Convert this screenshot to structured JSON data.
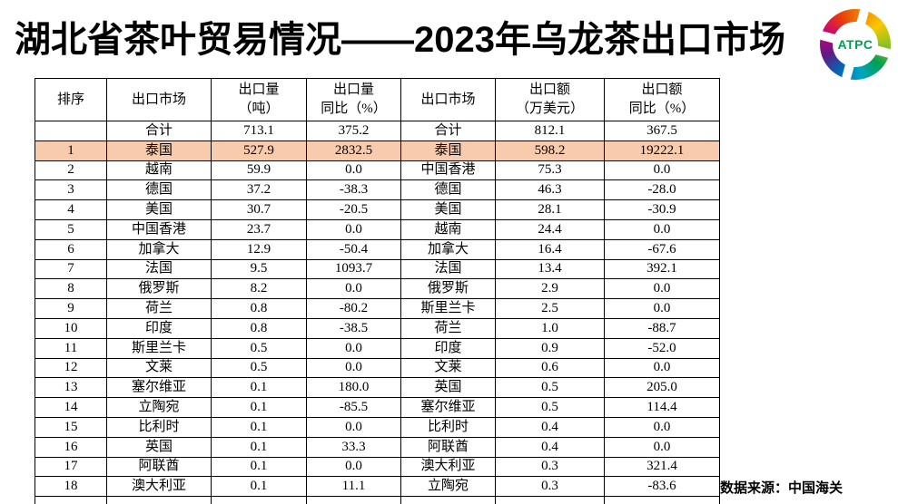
{
  "title": "湖北省茶叶贸易情况——2023年乌龙茶出口市场",
  "logo": {
    "text": "ATPC",
    "text_color": "#009f54",
    "ring_colors": [
      "#e8380d",
      "#f08300",
      "#fcc800",
      "#8fc31f",
      "#009f54",
      "#00a5c3",
      "#0068b7",
      "#601986",
      "#c7017f"
    ]
  },
  "colors": {
    "highlight_row": "#F8CBAD",
    "border": "#000000",
    "title_text": "#000000"
  },
  "table": {
    "headers": [
      "排序",
      "出口市场",
      "出口量\n（吨）",
      "出口量\n同比（%）",
      "出口市场",
      "出口额\n（万美元）",
      "出口额\n同比（%）"
    ],
    "rows": [
      {
        "rank": "",
        "market_vol": "合计",
        "volume": "713.1",
        "volume_yoy": "375.2",
        "market_val": "合计",
        "value": "812.1",
        "value_yoy": "367.5",
        "highlight": false
      },
      {
        "rank": "1",
        "market_vol": "泰国",
        "volume": "527.9",
        "volume_yoy": "2832.5",
        "market_val": "泰国",
        "value": "598.2",
        "value_yoy": "19222.1",
        "highlight": true
      },
      {
        "rank": "2",
        "market_vol": "越南",
        "volume": "59.9",
        "volume_yoy": "0.0",
        "market_val": "中国香港",
        "value": "75.3",
        "value_yoy": "0.0",
        "highlight": false
      },
      {
        "rank": "3",
        "market_vol": "德国",
        "volume": "37.2",
        "volume_yoy": "-38.3",
        "market_val": "德国",
        "value": "46.3",
        "value_yoy": "-28.0",
        "highlight": false
      },
      {
        "rank": "4",
        "market_vol": "美国",
        "volume": "30.7",
        "volume_yoy": "-20.5",
        "market_val": "美国",
        "value": "28.1",
        "value_yoy": "-30.9",
        "highlight": false
      },
      {
        "rank": "5",
        "market_vol": "中国香港",
        "volume": "23.7",
        "volume_yoy": "0.0",
        "market_val": "越南",
        "value": "24.4",
        "value_yoy": "0.0",
        "highlight": false
      },
      {
        "rank": "6",
        "market_vol": "加拿大",
        "volume": "12.9",
        "volume_yoy": "-50.4",
        "market_val": "加拿大",
        "value": "16.4",
        "value_yoy": "-67.6",
        "highlight": false
      },
      {
        "rank": "7",
        "market_vol": "法国",
        "volume": "9.5",
        "volume_yoy": "1093.7",
        "market_val": "法国",
        "value": "13.4",
        "value_yoy": "392.1",
        "highlight": false
      },
      {
        "rank": "8",
        "market_vol": "俄罗斯",
        "volume": "8.2",
        "volume_yoy": "0.0",
        "market_val": "俄罗斯",
        "value": "2.9",
        "value_yoy": "0.0",
        "highlight": false
      },
      {
        "rank": "9",
        "market_vol": "荷兰",
        "volume": "0.8",
        "volume_yoy": "-80.2",
        "market_val": "斯里兰卡",
        "value": "2.5",
        "value_yoy": "0.0",
        "highlight": false
      },
      {
        "rank": "10",
        "market_vol": "印度",
        "volume": "0.8",
        "volume_yoy": "-38.5",
        "market_val": "荷兰",
        "value": "1.0",
        "value_yoy": "-88.7",
        "highlight": false
      },
      {
        "rank": "11",
        "market_vol": "斯里兰卡",
        "volume": "0.5",
        "volume_yoy": "0.0",
        "market_val": "印度",
        "value": "0.9",
        "value_yoy": "-52.0",
        "highlight": false
      },
      {
        "rank": "12",
        "market_vol": "文莱",
        "volume": "0.5",
        "volume_yoy": "0.0",
        "market_val": "文莱",
        "value": "0.6",
        "value_yoy": "0.0",
        "highlight": false
      },
      {
        "rank": "13",
        "market_vol": "塞尔维亚",
        "volume": "0.1",
        "volume_yoy": "180.0",
        "market_val": "英国",
        "value": "0.5",
        "value_yoy": "205.0",
        "highlight": false
      },
      {
        "rank": "14",
        "market_vol": "立陶宛",
        "volume": "0.1",
        "volume_yoy": "-85.5",
        "market_val": "塞尔维亚",
        "value": "0.5",
        "value_yoy": "114.4",
        "highlight": false
      },
      {
        "rank": "15",
        "market_vol": "比利时",
        "volume": "0.1",
        "volume_yoy": "0.0",
        "market_val": "比利时",
        "value": "0.4",
        "value_yoy": "0.0",
        "highlight": false
      },
      {
        "rank": "16",
        "market_vol": "英国",
        "volume": "0.1",
        "volume_yoy": "33.3",
        "market_val": "阿联酋",
        "value": "0.4",
        "value_yoy": "0.0",
        "highlight": false
      },
      {
        "rank": "17",
        "market_vol": "阿联酋",
        "volume": "0.1",
        "volume_yoy": "0.0",
        "market_val": "澳大利亚",
        "value": "0.3",
        "value_yoy": "321.4",
        "highlight": false
      },
      {
        "rank": "18",
        "market_vol": "澳大利亚",
        "volume": "0.1",
        "volume_yoy": "11.1",
        "market_val": "立陶宛",
        "value": "0.3",
        "value_yoy": "-83.6",
        "highlight": false
      }
    ]
  },
  "footer": {
    "source": "数据来源：中国海关"
  }
}
